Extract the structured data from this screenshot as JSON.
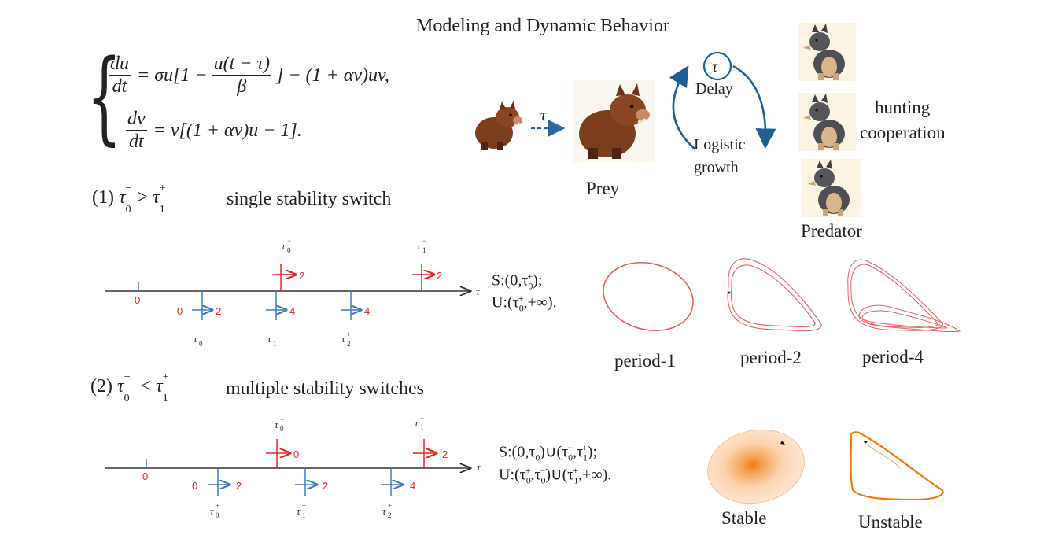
{
  "title": "Modeling and Dynamic Behavior",
  "equation": {
    "line1": {
      "lhs_num": "du",
      "lhs_den": "dt",
      "pre": "= σu[1 −",
      "frac_num": "u(t − τ)",
      "frac_den": "β",
      "post": "] − (1 + αv)uv,"
    },
    "line2": {
      "lhs_num": "dv",
      "lhs_den": "dt",
      "rhs": "= v[(1 + αv)u − 1]."
    }
  },
  "case1": {
    "label_num": "(1)",
    "condition_left": "τ",
    "condition_left_sub": "0",
    "condition_left_sup": "−",
    "condition_op": ">",
    "condition_right": "τ",
    "condition_right_sub": "1",
    "condition_right_sup": "+",
    "desc": "single stability switch",
    "legend_s": "S:(0,τ",
    "legend_s_sub": "0",
    "legend_s_sup": "+",
    "legend_s_end": ");",
    "legend_u": "U:(τ",
    "legend_u_sub": "0",
    "legend_u_sup": "+",
    "legend_u_end": ",+∞)."
  },
  "case2": {
    "label_num": "(2)",
    "condition_left": "τ",
    "condition_left_sub": "0",
    "condition_left_sup": "−",
    "condition_op": "<",
    "condition_right": "τ",
    "condition_right_sub": "1",
    "condition_right_sup": "+",
    "desc": "multiple stability switches",
    "legend_s": "S:(0,τ",
    "legend_s_sub": "0",
    "legend_s_sup": "+",
    "legend_s_mid": ")∪(τ",
    "legend_s_sub2": "0",
    "legend_s_sup2": "−",
    "legend_s_mid2": ",τ",
    "legend_s_sub3": "1",
    "legend_s_sup3": "+",
    "legend_s_end": ");",
    "legend_u": "U:(τ",
    "legend_u_sub": "0",
    "legend_u_sup": "+",
    "legend_u_mid": ",τ",
    "legend_u_sub2": "0",
    "legend_u_sup2": "−",
    "legend_u_mid2": ")∪(τ",
    "legend_u_sub3": "1",
    "legend_u_sup3": "+",
    "legend_u_end": ",+∞)."
  },
  "axis_label": "τ",
  "timeline1": {
    "zero": "0",
    "below_labels": [
      "0",
      "2",
      "4",
      "4"
    ],
    "above_labels": [
      "2",
      "2"
    ],
    "below_taus": [
      [
        "τ",
        "+",
        "0"
      ],
      [
        "τ",
        "+",
        "1"
      ],
      [
        "τ",
        "+",
        "2"
      ]
    ],
    "above_taus": [
      [
        "τ",
        "−",
        "0"
      ],
      [
        "τ",
        "−",
        "1"
      ]
    ]
  },
  "timeline2": {
    "zero": "0",
    "below_labels": [
      "0",
      "2",
      "2",
      "4"
    ],
    "above_labels": [
      "0",
      "2"
    ],
    "below_taus": [
      [
        "τ",
        "+",
        "0"
      ],
      [
        "τ",
        "+",
        "1"
      ],
      [
        "τ",
        "+",
        "2"
      ]
    ],
    "above_taus": [
      [
        "τ",
        "−",
        "0"
      ],
      [
        "τ",
        "−",
        "1"
      ]
    ]
  },
  "schematic": {
    "tau_arrow_label": "τ",
    "prey_label": "Prey",
    "cycle_tau": "τ",
    "delay_label": "Delay",
    "logistic_label_1": "Logistic",
    "logistic_label_2": "growth",
    "hunting_1": "hunting",
    "hunting_2": "cooperation",
    "predator_label": "Predator"
  },
  "periods": [
    "period-1",
    "period-2",
    "period-4"
  ],
  "stability": [
    "Stable",
    "Unstable"
  ],
  "colors": {
    "red": "#e02828",
    "blue": "#3d7cc2",
    "orbit_red": "#e46060",
    "orange": "#f07a10",
    "cycle_blue": "#1f5f93"
  },
  "icons": [
    "boar-icon",
    "wolf-icon"
  ]
}
